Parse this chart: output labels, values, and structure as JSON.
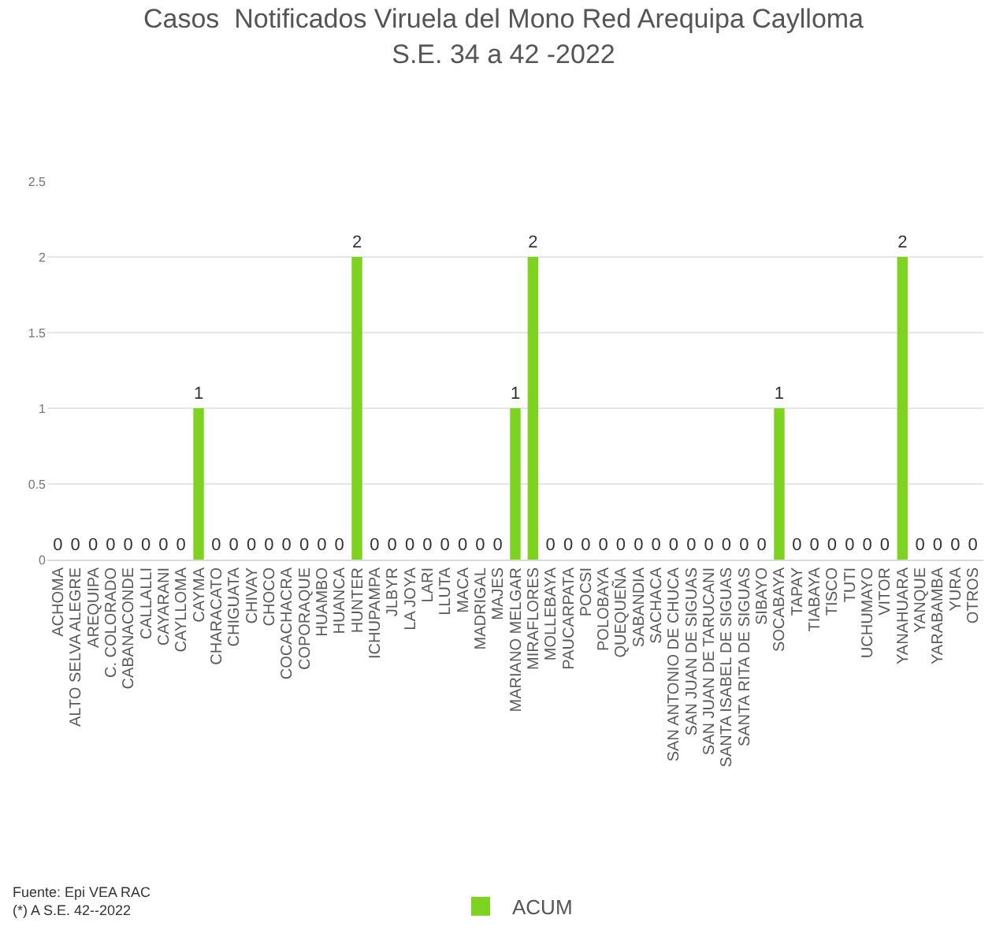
{
  "chart_data": {
    "type": "bar",
    "title": "Casos  Notificados Viruela del Mono Red Arequipa Caylloma\nS.E. 34 a 42 -2022",
    "categories": [
      "ACHOMA",
      "ALTO SELVA ALEGRE",
      "AREQUIPA",
      "C. COLORADO",
      "CABANACONDE",
      "CALLALLI",
      "CAYARANI",
      "CAYLLOMA",
      "CAYMA",
      "CHARACATO",
      "CHIGUATA",
      "CHIVAY",
      "CHOCO",
      "COCACHACRA",
      "COPORAQUE",
      "HUAMBO",
      "HUANCA",
      "HUNTER",
      "ICHUPAMPA",
      "JLBYR",
      "LA JOYA",
      "LARI",
      "LLUTA",
      "MACA",
      "MADRIGAL",
      "MAJES",
      "MARIANO MELGAR",
      "MIRAFLORES",
      "MOLLEBAYA",
      "PAUCARPATA",
      "POCSI",
      "POLOBAYA",
      "QUEQUEÑA",
      "SABANDIA",
      "SACHACA",
      "SAN ANTONIO DE CHUCA",
      "SAN JUAN DE SIGUAS",
      "SAN JUAN DE TARUCANI",
      "SANTA ISABEL DE SIGUAS",
      "SANTA RITA DE SIGUAS",
      "SIBAYO",
      "SOCABAYA",
      "TAPAY",
      "TIABAYA",
      "TISCO",
      "TUTI",
      "UCHUMAYO",
      "VITOR",
      "YANAHUARA",
      "YANQUE",
      "YARABAMBA",
      "YURA",
      "OTROS"
    ],
    "series": [
      {
        "name": "ACUM",
        "color": "#7ed321",
        "values": [
          0,
          0,
          0,
          0,
          0,
          0,
          0,
          0,
          1,
          0,
          0,
          0,
          0,
          0,
          0,
          0,
          0,
          2,
          0,
          0,
          0,
          0,
          0,
          0,
          0,
          0,
          1,
          2,
          0,
          0,
          0,
          0,
          0,
          0,
          0,
          0,
          0,
          0,
          0,
          0,
          0,
          1,
          0,
          0,
          0,
          0,
          0,
          0,
          2,
          0,
          0,
          0,
          0
        ]
      }
    ],
    "ylim": [
      0,
      2.5
    ],
    "yticks": [
      0,
      0.5,
      1,
      1.5,
      2,
      2.5
    ],
    "grid": "y",
    "legend": "bottom",
    "data_labels": true,
    "annotations": [
      "Fuente: Epi VEA RAC\n(*) A S.E. 42--2022"
    ]
  }
}
